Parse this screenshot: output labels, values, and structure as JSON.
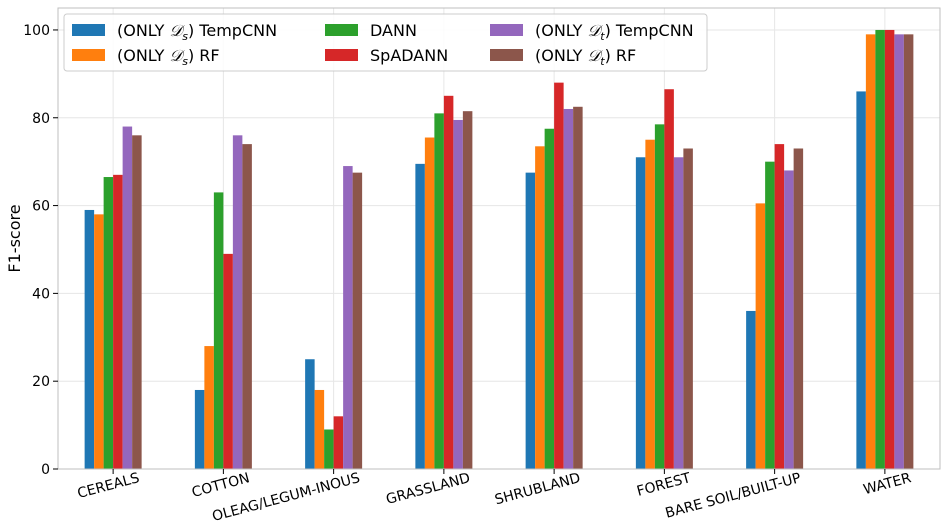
{
  "chart_data": {
    "type": "bar",
    "ylabel": "F1-score",
    "xlabel": "",
    "ylim": [
      0,
      105
    ],
    "yticks": [
      0,
      20,
      40,
      60,
      80,
      100
    ],
    "grid": true,
    "legend_placement": "top-left",
    "legend_columns": 3,
    "categories": [
      "CEREALS",
      "COTTON",
      "OLEAG/LEGUM-INOUS",
      "GRASSLAND",
      "SHRUBLAND",
      "FOREST",
      "BARE SOIL/BUILT-UP",
      "WATER"
    ],
    "series": [
      {
        "name": "(ONLY 𝒟s) TempCNN",
        "name_base": "(ONLY ",
        "name_sym": "𝒟",
        "name_sub": "s",
        "name_tail": ") TempCNN",
        "color": "#1f77b4",
        "values": [
          59,
          18,
          25,
          69.5,
          67.5,
          71,
          36,
          86
        ]
      },
      {
        "name": "(ONLY 𝒟s) RF",
        "name_base": "(ONLY ",
        "name_sym": "𝒟",
        "name_sub": "s",
        "name_tail": ") RF",
        "color": "#ff7f0e",
        "values": [
          58,
          28,
          18,
          75.5,
          73.5,
          75,
          60.5,
          99
        ]
      },
      {
        "name": "DANN",
        "name_base": "DANN",
        "name_sym": "",
        "name_sub": "",
        "name_tail": "",
        "color": "#2ca02c",
        "values": [
          66.5,
          63,
          9,
          81,
          77.5,
          78.5,
          70,
          100
        ]
      },
      {
        "name": "SpADANN",
        "name_base": "SpADANN",
        "name_sym": "",
        "name_sub": "",
        "name_tail": "",
        "color": "#d62728",
        "values": [
          67,
          49,
          12,
          85,
          88,
          86.5,
          74,
          100
        ]
      },
      {
        "name": "(ONLY 𝒟t) TempCNN",
        "name_base": "(ONLY ",
        "name_sym": "𝒟",
        "name_sub": "t",
        "name_tail": ") TempCNN",
        "color": "#9467bd",
        "values": [
          78,
          76,
          69,
          79.5,
          82,
          71,
          68,
          99
        ]
      },
      {
        "name": "(ONLY 𝒟t) RF",
        "name_base": "(ONLY ",
        "name_sym": "𝒟",
        "name_sub": "t",
        "name_tail": ") RF",
        "color": "#8c564b",
        "values": [
          76,
          74,
          67.5,
          81.5,
          82.5,
          73,
          73,
          99
        ]
      }
    ]
  }
}
